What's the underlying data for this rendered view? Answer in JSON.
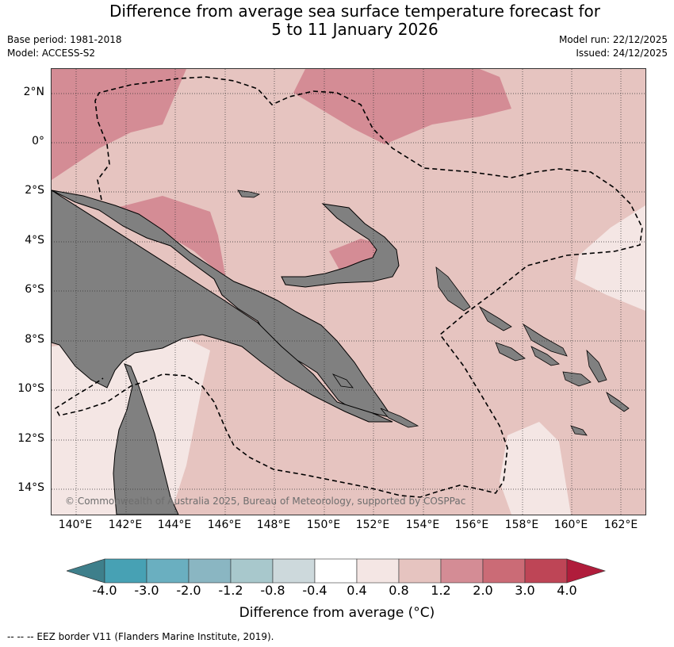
{
  "header": {
    "title_line1": "Difference from average sea surface temperature forecast for",
    "title_line2": "5 to 11 January 2026",
    "base_period": "Base period: 1981-2018",
    "model": "Model: ACCESS-S2",
    "model_run": "Model run: 22/12/2025",
    "issued": "Issued: 24/12/2025"
  },
  "map": {
    "lat_labels": [
      "2°N",
      "0°",
      "2°S",
      "4°S",
      "6°S",
      "8°S",
      "10°S",
      "12°S",
      "14°S"
    ],
    "lon_labels": [
      "140°E",
      "142°E",
      "144°E",
      "146°E",
      "148°E",
      "150°E",
      "152°E",
      "154°E",
      "156°E",
      "158°E",
      "160°E",
      "162°E"
    ],
    "copyright": "© Commonwealth of Australia 2025, Bureau of Meteorology, supported by COSPPac",
    "land_color": "#808080",
    "background_anomaly_color": "#e6c4c0"
  },
  "colorbar": {
    "title": "Difference from average (°C)",
    "ticks": [
      "-4.0",
      "-3.0",
      "-2.0",
      "-1.2",
      "-0.8",
      "-0.4",
      "0.4",
      "0.8",
      "1.2",
      "2.0",
      "3.0",
      "4.0"
    ],
    "colors": [
      "#3e7f8b",
      "#47a1b4",
      "#6aafc0",
      "#8ab6c2",
      "#a8c8cc",
      "#cdd9dc",
      "#ffffff",
      "#f4e6e4",
      "#e6c4c0",
      "#d48c95",
      "#cb6b76",
      "#be4556",
      "#b01c3b"
    ]
  },
  "footnote": "--  --  -- EEZ border V11 (Flanders Marine Institute, 2019)."
}
